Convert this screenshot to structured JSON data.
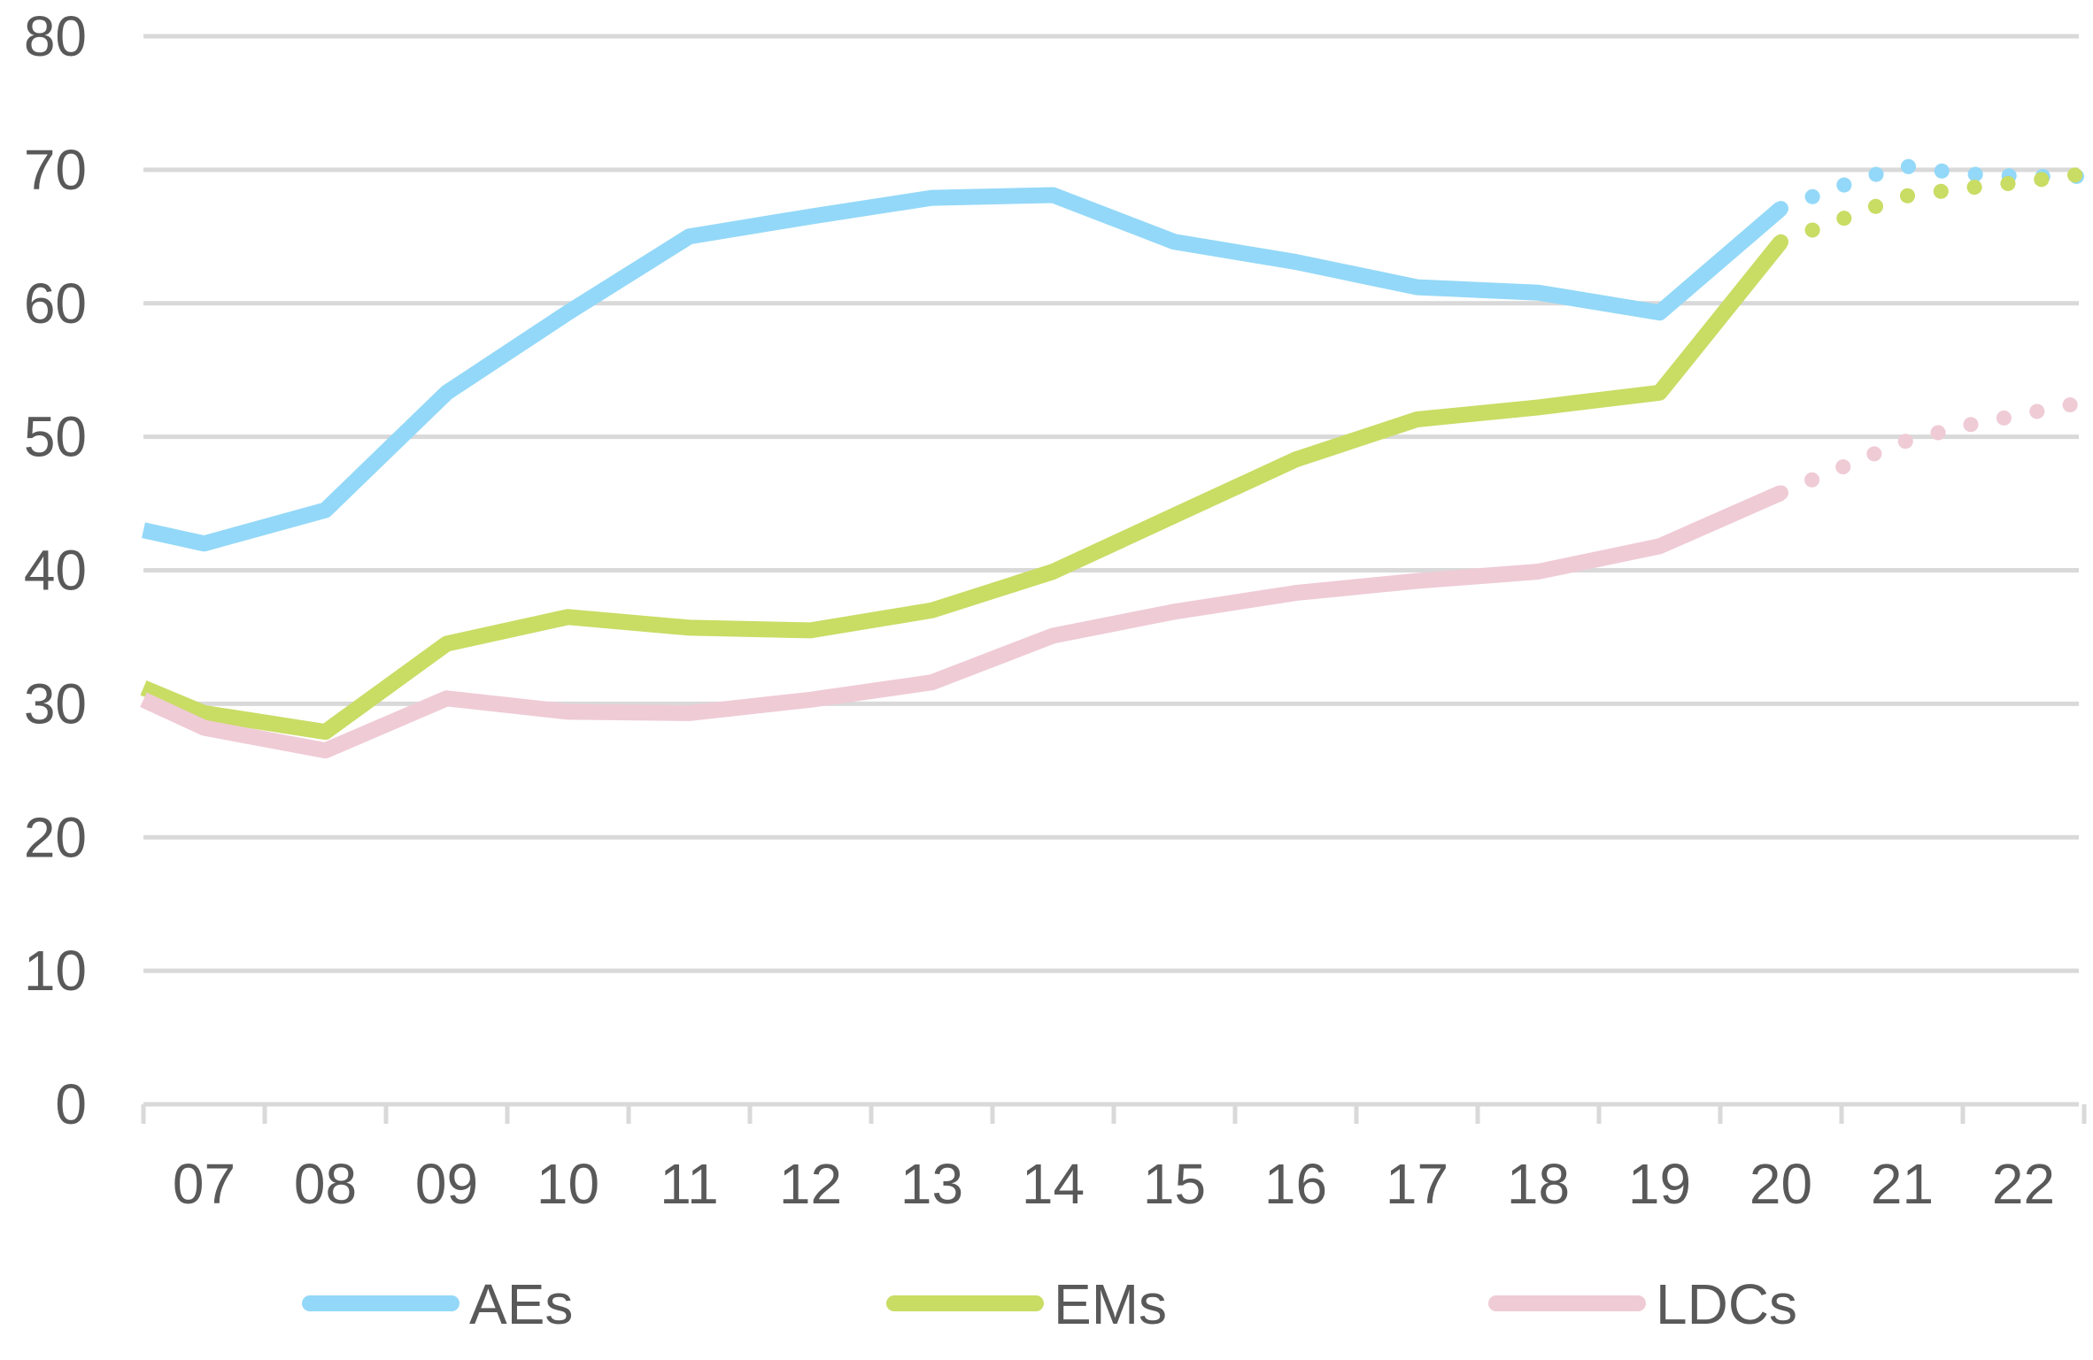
{
  "chart_data": {
    "type": "line",
    "title": "",
    "xlabel": "",
    "ylabel": "",
    "ylim": [
      0,
      80
    ],
    "yticks": [
      "0",
      "10",
      "20",
      "30",
      "40",
      "50",
      "60",
      "70",
      "80"
    ],
    "xtick_labels": [
      "07",
      "08",
      "09",
      "10",
      "11",
      "12",
      "13",
      "14",
      "15",
      "16",
      "17",
      "18",
      "19",
      "20",
      "21",
      "22"
    ],
    "grid": true,
    "legend_position": "bottom",
    "series": [
      {
        "name": "AEs",
        "color": "#93d8f8",
        "solid": {
          "x": [
            2006.5,
            2007.0,
            2008.0,
            2009.0,
            2010.0,
            2011.0,
            2012.0,
            2013.0,
            2014.0,
            2015.0,
            2016.0,
            2017.0,
            2018.0,
            2019.0,
            2020.0
          ],
          "y": [
            43,
            42,
            44.5,
            53.3,
            59.3,
            65,
            66.5,
            67.9,
            68.1,
            64.6,
            63.1,
            61.2,
            60.8,
            59.3,
            67.1
          ]
        },
        "projection": {
          "x": [
            2020.0,
            2020.5,
            2021.0,
            2021.5,
            2022.0,
            2022.5
          ],
          "y": [
            67.1,
            68.8,
            70.3,
            69.7,
            69.5,
            69.5
          ]
        }
      },
      {
        "name": "EMs",
        "color": "#c9dc64",
        "solid": {
          "x": [
            2006.5,
            2007.0,
            2008.0,
            2009.0,
            2010.0,
            2011.0,
            2012.0,
            2013.0,
            2014.0,
            2015.0,
            2016.0,
            2017.0,
            2018.0,
            2019.0,
            2020.0
          ],
          "y": [
            31.2,
            29.3,
            27.9,
            34.5,
            36.5,
            35.7,
            35.5,
            37,
            39.9,
            44.1,
            48.3,
            51.3,
            52.2,
            53.3,
            64.6
          ]
        },
        "projection": {
          "x": [
            2020.0,
            2020.5,
            2021.0,
            2021.5,
            2022.0,
            2022.5
          ],
          "y": [
            64.6,
            66.3,
            68,
            68.6,
            69.1,
            69.7
          ]
        }
      },
      {
        "name": "LDCs",
        "color": "#efcbd6",
        "solid": {
          "x": [
            2006.5,
            2007.0,
            2008.0,
            2009.0,
            2010.0,
            2011.0,
            2012.0,
            2013.0,
            2014.0,
            2015.0,
            2016.0,
            2017.0,
            2018.0,
            2019.0,
            2020.0
          ],
          "y": [
            30.3,
            28.2,
            26.5,
            30.4,
            29.4,
            29.3,
            30.3,
            31.6,
            35.1,
            36.9,
            38.3,
            39.2,
            39.9,
            41.8,
            45.8
          ]
        },
        "projection": {
          "x": [
            2020.0,
            2020.5,
            2021.0,
            2021.5,
            2022.0,
            2022.5
          ],
          "y": [
            45.8,
            47.7,
            49.6,
            50.8,
            51.7,
            52.6
          ]
        }
      }
    ]
  }
}
